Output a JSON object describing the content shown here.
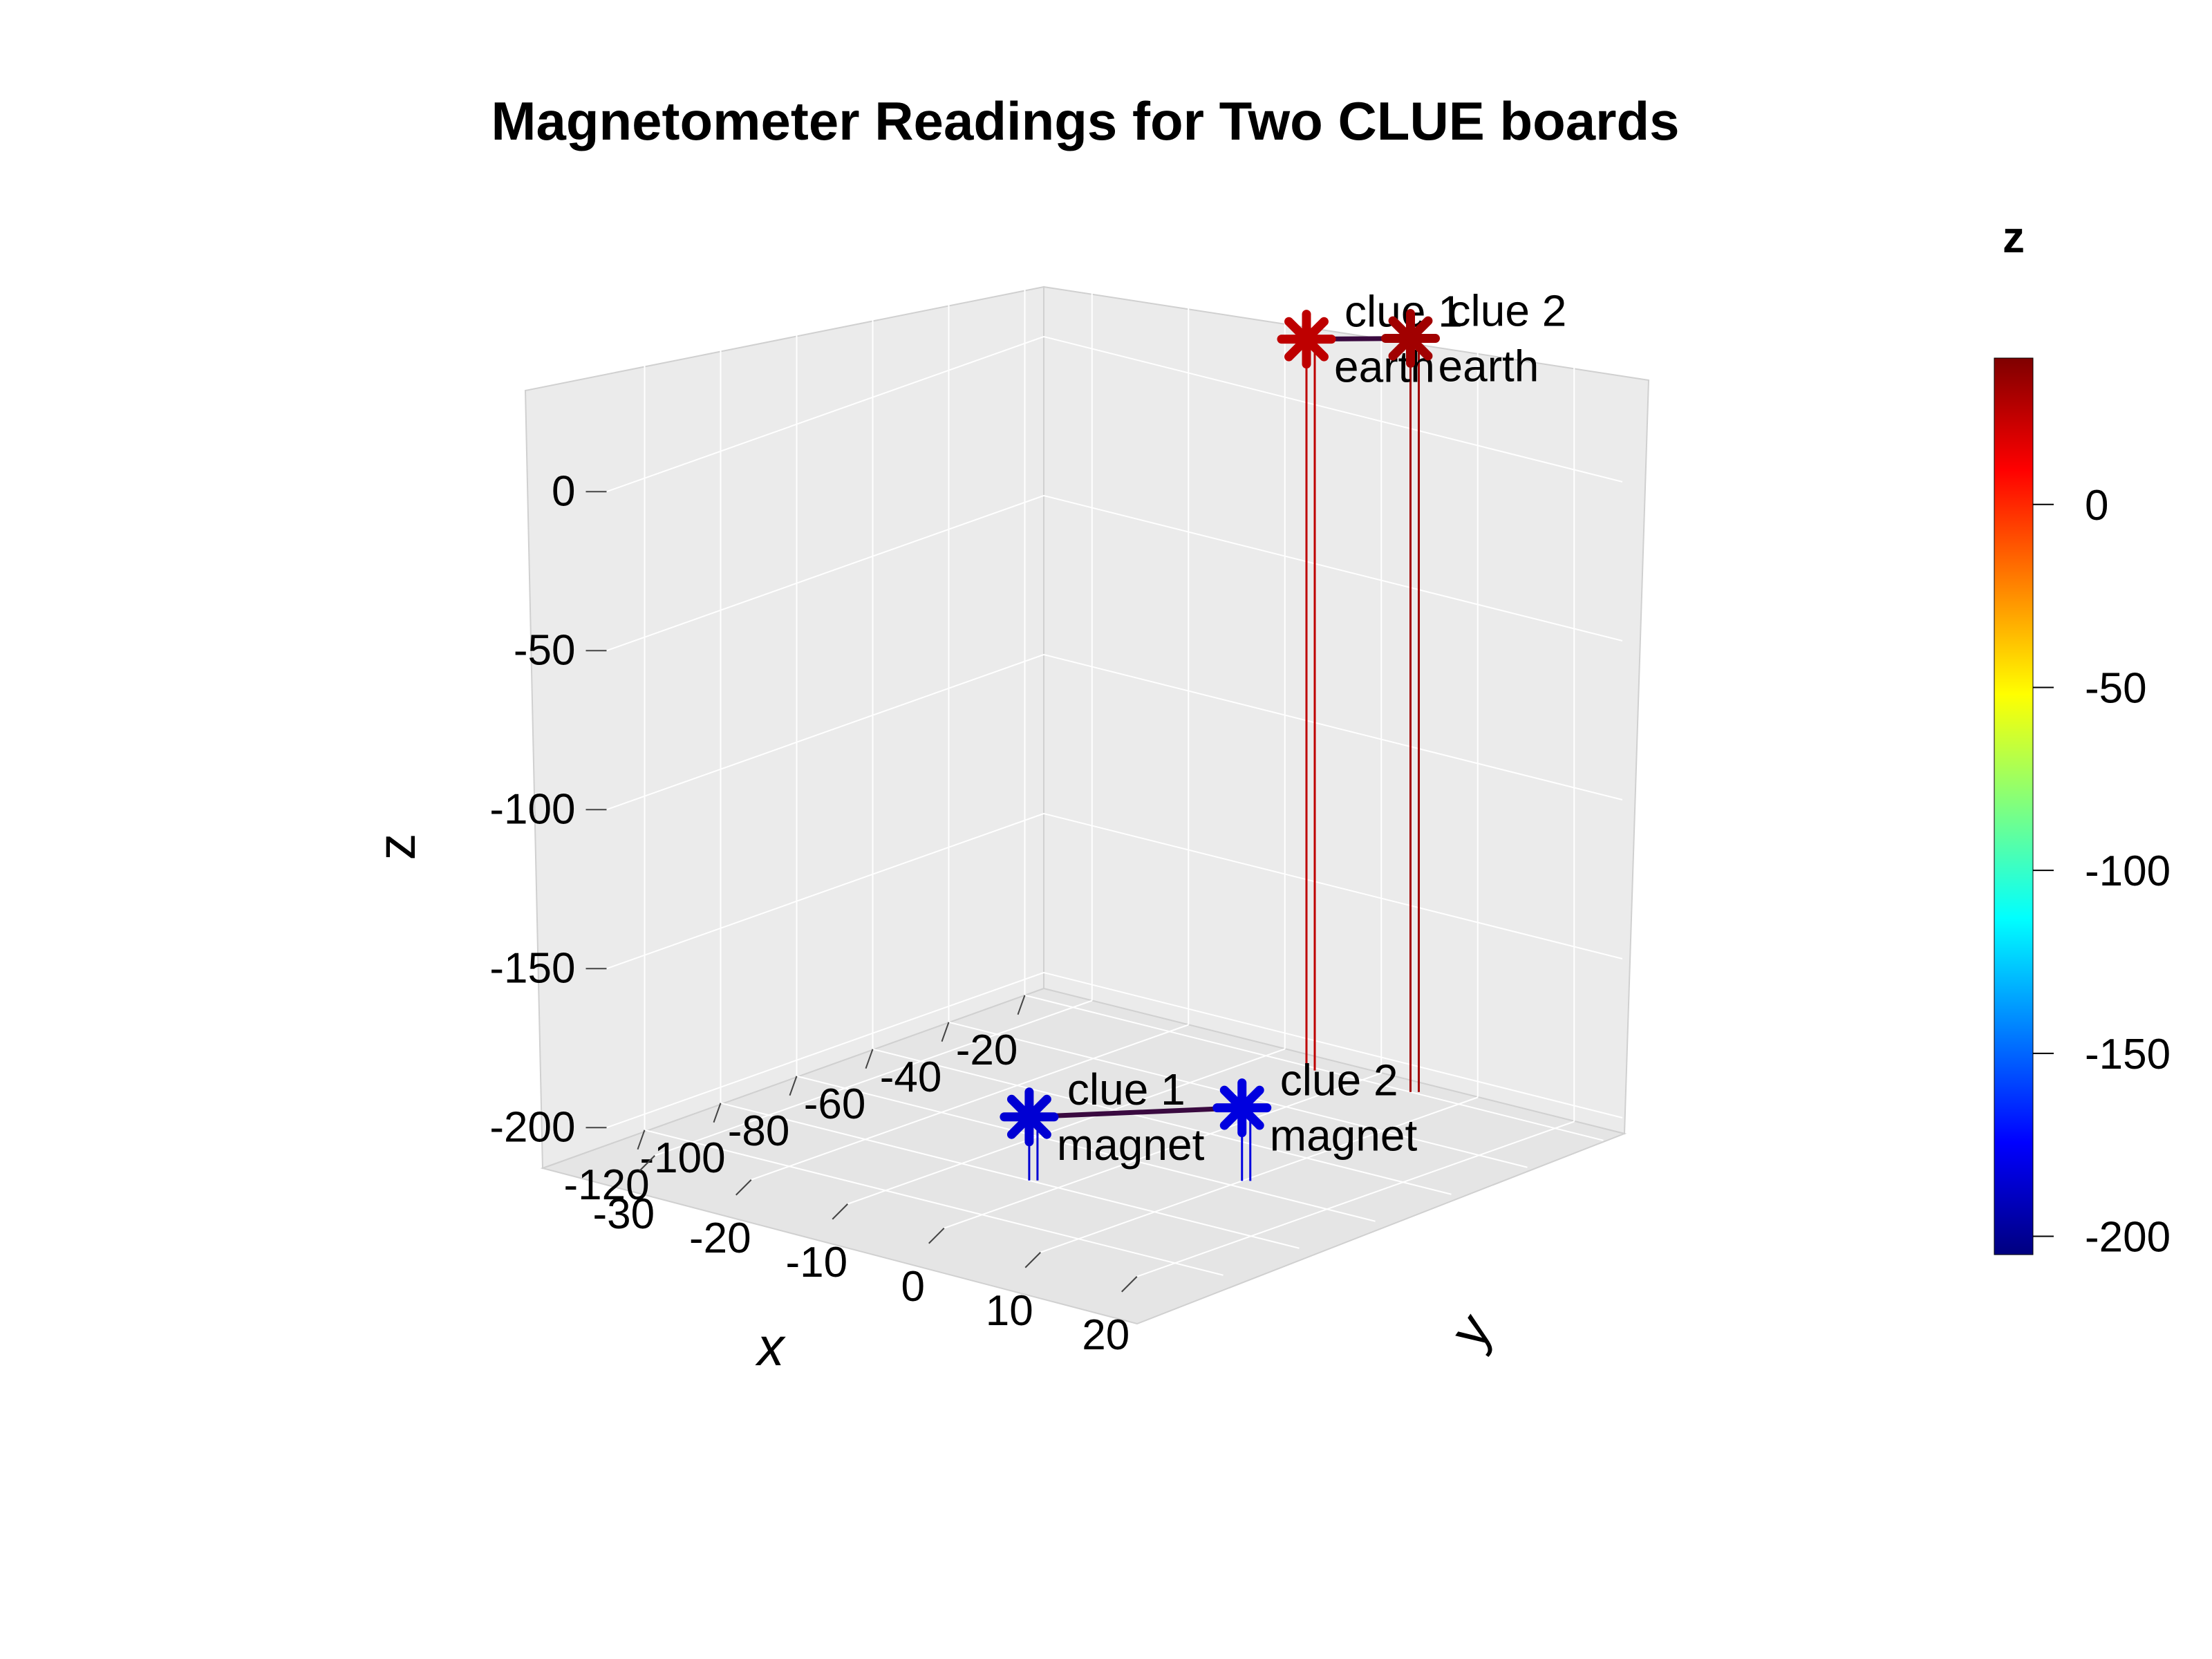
{
  "chart_data": {
    "type": "scatter",
    "title": "Magnetometer Readings for Two CLUE boards",
    "xlabel": "x",
    "ylabel": "y",
    "zlabel": "z",
    "xlim": [
      -130,
      -15
    ],
    "ylim": [
      -35,
      25
    ],
    "zlim": [
      -205,
      40
    ],
    "x_ticks": [
      -120,
      -100,
      -80,
      -60,
      -40,
      -20
    ],
    "y_ticks": [
      -30,
      -20,
      -10,
      0,
      10,
      20
    ],
    "z_ticks": [
      0,
      -50,
      -100,
      -150,
      -200
    ],
    "colorbar": {
      "title": "z",
      "colormap": "jet",
      "range": [
        -205,
        40
      ],
      "ticks": [
        0,
        -50,
        -100,
        -150,
        -200
      ]
    },
    "grid": true,
    "series": [
      {
        "points": [
          {
            "label": "clue 1\nearth",
            "x": -22,
            "y": -5,
            "z": 25
          },
          {
            "label": "clue 1\nmagnet",
            "x": -100,
            "y": -3,
            "z": -185
          }
        ]
      },
      {
        "points": [
          {
            "label": "clue 2\nearth",
            "x": -20,
            "y": 5,
            "z": 32
          },
          {
            "label": "clue 2\nmagnet",
            "x": -77,
            "y": 10,
            "z": -182
          }
        ]
      }
    ]
  }
}
